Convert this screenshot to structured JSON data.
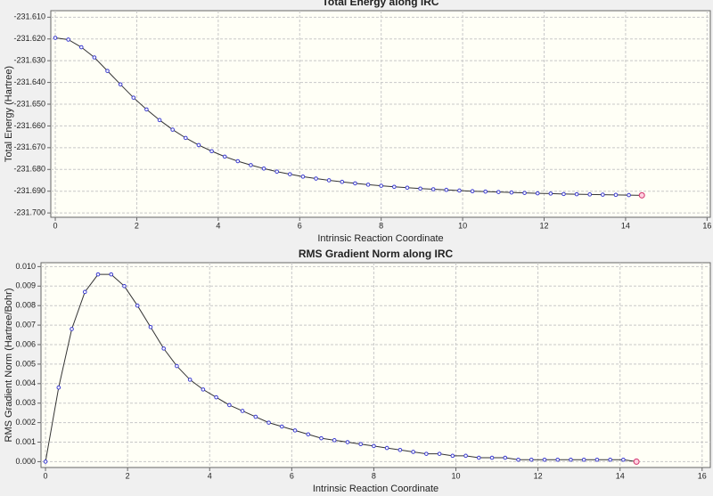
{
  "chart_data": [
    {
      "type": "line",
      "title": "Total Energy along IRC",
      "x_label": "Intrinsic Reaction Coordinate",
      "y_label": "Total Energy (Hartree)",
      "x": [
        0,
        0.32,
        0.64,
        0.96,
        1.28,
        1.6,
        1.92,
        2.24,
        2.56,
        2.88,
        3.2,
        3.52,
        3.84,
        4.16,
        4.48,
        4.8,
        5.12,
        5.44,
        5.76,
        6.08,
        6.4,
        6.72,
        7.04,
        7.36,
        7.68,
        8.0,
        8.32,
        8.64,
        8.96,
        9.28,
        9.6,
        9.92,
        10.24,
        10.56,
        10.88,
        11.2,
        11.52,
        11.84,
        12.16,
        12.48,
        12.8,
        13.12,
        13.44,
        13.76,
        14.08,
        14.4
      ],
      "values": [
        -231.6195,
        -231.6203,
        -231.6238,
        -231.6285,
        -231.6347,
        -231.6409,
        -231.647,
        -231.6524,
        -231.6573,
        -231.6617,
        -231.6655,
        -231.6688,
        -231.6716,
        -231.6741,
        -231.6762,
        -231.678,
        -231.6796,
        -231.681,
        -231.6822,
        -231.6833,
        -231.6842,
        -231.685,
        -231.6857,
        -231.6864,
        -231.687,
        -231.6875,
        -231.688,
        -231.6884,
        -231.6888,
        -231.6891,
        -231.6894,
        -231.6897,
        -231.69,
        -231.6902,
        -231.6904,
        -231.6906,
        -231.6908,
        -231.691,
        -231.6911,
        -231.6913,
        -231.6914,
        -231.6915,
        -231.6916,
        -231.6917,
        -231.6918,
        -231.6919
      ],
      "color": "#333333",
      "marker_color": "#3b3bd0",
      "highlight_color": "#d0306a",
      "xlim": [
        -0.11,
        16.08
      ],
      "xticks": [
        0,
        2,
        4,
        6,
        8,
        10,
        12,
        14,
        16
      ],
      "ylim": [
        -231.702,
        -231.607
      ],
      "yticks": [
        {
          "value": -231.61,
          "label": "-231.610"
        },
        {
          "value": -231.62,
          "label": "-231.620"
        },
        {
          "value": -231.63,
          "label": "-231.630"
        },
        {
          "value": -231.64,
          "label": "-231.640"
        },
        {
          "value": -231.65,
          "label": "-231.650"
        },
        {
          "value": -231.66,
          "label": "-231.660"
        },
        {
          "value": -231.67,
          "label": "-231.670"
        },
        {
          "value": -231.68,
          "label": "-231.680"
        },
        {
          "value": -231.69,
          "label": "-231.690"
        },
        {
          "value": -231.7,
          "label": "-231.700"
        }
      ],
      "grid": true
    },
    {
      "type": "line",
      "title": "RMS Gradient Norm along IRC",
      "x_label": "Intrinsic Reaction Coordinate",
      "y_label": "RMS Gradient Norm (Hartree/Bohr)",
      "x": [
        0,
        0.32,
        0.64,
        0.96,
        1.28,
        1.6,
        1.92,
        2.24,
        2.56,
        2.88,
        3.2,
        3.52,
        3.84,
        4.16,
        4.48,
        4.8,
        5.12,
        5.44,
        5.76,
        6.08,
        6.4,
        6.72,
        7.04,
        7.36,
        7.68,
        8.0,
        8.32,
        8.64,
        8.96,
        9.28,
        9.6,
        9.92,
        10.24,
        10.56,
        10.88,
        11.2,
        11.52,
        11.84,
        12.16,
        12.48,
        12.8,
        13.12,
        13.44,
        13.76,
        14.08,
        14.4
      ],
      "values": [
        0,
        0.0038,
        0.0068,
        0.0087,
        0.0096,
        0.0096,
        0.009,
        0.008,
        0.0069,
        0.0058,
        0.0049,
        0.0042,
        0.0037,
        0.0033,
        0.0029,
        0.0026,
        0.0023,
        0.002,
        0.0018,
        0.0016,
        0.0014,
        0.0012,
        0.0011,
        0.001,
        0.0009,
        0.0008,
        0.0007,
        0.0006,
        0.0005,
        0.0004,
        0.0004,
        0.0003,
        0.0003,
        0.0002,
        0.0002,
        0.0002,
        0.0001,
        0.0001,
        0.0001,
        0.0001,
        0.0001,
        0.0001,
        0.0001,
        0.0001,
        0.0001,
        0
      ],
      "color": "#333333",
      "marker_color": "#3b3bd0",
      "highlight_color": "#d0306a",
      "xlim": [
        -0.11,
        16.2
      ],
      "xticks": [
        0,
        2,
        4,
        6,
        8,
        10,
        12,
        14,
        16
      ],
      "ylim": [
        -0.0003,
        0.0102
      ],
      "yticks": [
        {
          "value": 0,
          "label": "0.000"
        },
        {
          "value": 0.001,
          "label": "0.001"
        },
        {
          "value": 0.002,
          "label": "0.002"
        },
        {
          "value": 0.003,
          "label": "0.003"
        },
        {
          "value": 0.004,
          "label": "0.004"
        },
        {
          "value": 0.005,
          "label": "0.005"
        },
        {
          "value": 0.006,
          "label": "0.006"
        },
        {
          "value": 0.007,
          "label": "0.007"
        },
        {
          "value": 0.008,
          "label": "0.008"
        },
        {
          "value": 0.009,
          "label": "0.009"
        },
        {
          "value": 0.01,
          "label": "0.010"
        }
      ],
      "grid": true
    }
  ]
}
